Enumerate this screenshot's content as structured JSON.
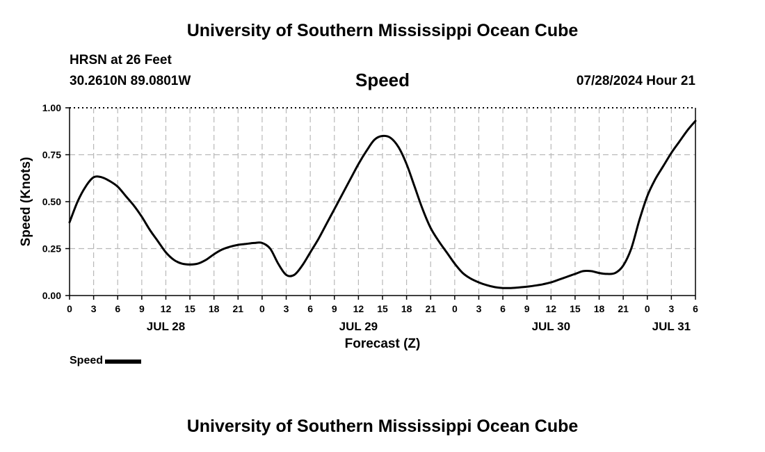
{
  "page": {
    "title_top": "University of Southern Mississippi Ocean Cube",
    "title_bottom": "University of Southern Mississippi Ocean Cube"
  },
  "header": {
    "station": "HRSN at 26 Feet",
    "coords": "30.2610N  89.0801W",
    "chart_title": "Speed",
    "timestamp": "07/28/2024 Hour 21"
  },
  "legend": {
    "label": "Speed",
    "color": "#000000"
  },
  "chart_data": {
    "type": "line",
    "ylabel": "Speed (Knots)",
    "xlabel": "Forecast (Z)",
    "ylim": [
      0,
      1
    ],
    "yticks": [
      "0.00",
      "0.25",
      "0.50",
      "0.75",
      "1.00"
    ],
    "xlim": [
      0,
      78
    ],
    "xticks": [
      "0",
      "3",
      "6",
      "9",
      "12",
      "15",
      "18",
      "21",
      "0",
      "3",
      "6",
      "9",
      "12",
      "15",
      "18",
      "21",
      "0",
      "3",
      "6",
      "9",
      "12",
      "15",
      "18",
      "21",
      "0",
      "3",
      "6"
    ],
    "date_labels": [
      {
        "label": "JUL 28",
        "hour": 12
      },
      {
        "label": "JUL 29",
        "hour": 36
      },
      {
        "label": "JUL 30",
        "hour": 60
      },
      {
        "label": "JUL 31",
        "hour": 75
      }
    ],
    "grid": true,
    "series": [
      {
        "name": "Speed",
        "color": "#000000",
        "x": [
          0,
          1,
          2,
          3,
          4,
          5,
          6,
          7,
          8,
          9,
          10,
          11,
          12,
          13,
          14,
          15,
          16,
          17,
          18,
          19,
          20,
          21,
          22,
          23,
          24,
          25,
          26,
          27,
          28,
          29,
          30,
          31,
          32,
          33,
          34,
          35,
          36,
          37,
          38,
          39,
          40,
          41,
          42,
          43,
          44,
          45,
          46,
          47,
          48,
          49,
          50,
          51,
          52,
          53,
          54,
          55,
          56,
          57,
          58,
          59,
          60,
          61,
          62,
          63,
          64,
          65,
          66,
          67,
          68,
          69,
          70,
          71,
          72,
          73,
          74,
          75,
          76,
          77,
          78
        ],
        "values": [
          0.39,
          0.5,
          0.58,
          0.63,
          0.63,
          0.61,
          0.58,
          0.53,
          0.48,
          0.42,
          0.35,
          0.29,
          0.23,
          0.19,
          0.17,
          0.165,
          0.17,
          0.19,
          0.22,
          0.245,
          0.26,
          0.27,
          0.275,
          0.28,
          0.28,
          0.25,
          0.17,
          0.11,
          0.11,
          0.16,
          0.23,
          0.3,
          0.38,
          0.46,
          0.54,
          0.62,
          0.7,
          0.77,
          0.83,
          0.85,
          0.84,
          0.79,
          0.7,
          0.58,
          0.46,
          0.36,
          0.29,
          0.23,
          0.17,
          0.12,
          0.09,
          0.07,
          0.055,
          0.045,
          0.04,
          0.04,
          0.043,
          0.047,
          0.053,
          0.06,
          0.07,
          0.085,
          0.1,
          0.115,
          0.13,
          0.13,
          0.12,
          0.115,
          0.12,
          0.16,
          0.25,
          0.4,
          0.53,
          0.62,
          0.69,
          0.76,
          0.82,
          0.88,
          0.93
        ]
      }
    ]
  }
}
